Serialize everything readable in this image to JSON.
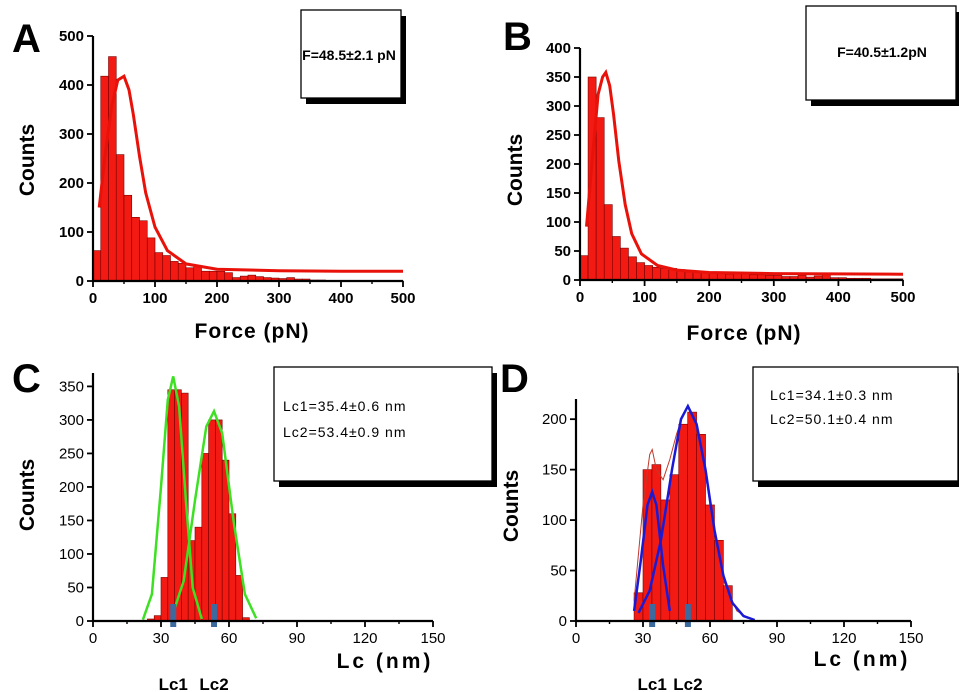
{
  "chart_data": [
    {
      "panel_letter": "A",
      "type": "bar",
      "fit_label": "F=48.5±2.1 pN",
      "xlabel": "Force (pN)",
      "ylabel": "Counts",
      "xlim": [
        0,
        500
      ],
      "ylim": [
        0,
        500
      ],
      "x_ticks": [
        0,
        100,
        200,
        300,
        400,
        500
      ],
      "y_ticks": [
        0,
        100,
        200,
        300,
        400,
        500
      ],
      "bin_width": 12.5,
      "values": [
        62,
        418,
        458,
        258,
        175,
        130,
        123,
        88,
        58,
        52,
        40,
        36,
        27,
        31,
        20,
        20,
        20,
        17,
        7,
        10,
        12,
        9,
        7,
        6,
        5,
        7,
        4,
        4,
        2,
        2,
        1,
        1,
        1,
        1,
        1,
        1,
        1,
        1,
        1,
        1
      ],
      "fit": {
        "x": [
          10,
          20,
          30,
          40,
          50,
          58,
          65,
          75,
          85,
          100,
          120,
          150,
          200,
          300,
          400,
          500
        ],
        "y": [
          150,
          262,
          355,
          410,
          418,
          390,
          340,
          255,
          180,
          110,
          62,
          35,
          24,
          21,
          20,
          20
        ]
      }
    },
    {
      "panel_letter": "B",
      "type": "bar",
      "fit_label": "F=40.5±1.2pN",
      "xlabel": "Force (pN)",
      "ylabel": "Counts",
      "xlim": [
        0,
        500
      ],
      "ylim": [
        0,
        400
      ],
      "x_ticks": [
        0,
        100,
        200,
        300,
        400,
        500
      ],
      "y_ticks": [
        0,
        50,
        100,
        150,
        200,
        250,
        300,
        350,
        400
      ],
      "bin_width": 12.5,
      "values": [
        42,
        350,
        280,
        130,
        75,
        55,
        40,
        30,
        25,
        22,
        20,
        20,
        18,
        14,
        14,
        13,
        12,
        12,
        10,
        12,
        10,
        9,
        9,
        8,
        8,
        6,
        6,
        8,
        5,
        7,
        10,
        4,
        4,
        3,
        3,
        3,
        2,
        2,
        2,
        2
      ],
      "fit": {
        "x": [
          10,
          20,
          28,
          35,
          40,
          46,
          52,
          60,
          70,
          80,
          95,
          120,
          150,
          200,
          300,
          500
        ],
        "y": [
          92,
          220,
          320,
          350,
          358,
          335,
          285,
          205,
          130,
          80,
          45,
          25,
          17,
          13,
          11,
          10
        ]
      }
    },
    {
      "panel_letter": "C",
      "type": "bar",
      "fit_label_1": "Lc1=35.4±0.6 nm",
      "fit_label_2": "Lc2=53.4±0.9 nm",
      "xlabel": "Lc (nm)",
      "ylabel": "Counts",
      "xlim": [
        0,
        150
      ],
      "ylim": [
        0,
        370
      ],
      "x_ticks": [
        0,
        30,
        60,
        90,
        120,
        150
      ],
      "y_ticks": [
        0,
        50,
        100,
        150,
        200,
        250,
        300,
        350
      ],
      "bin_width": 3,
      "bins_start": 24,
      "values": [
        3,
        8,
        65,
        345,
        345,
        340,
        120,
        140,
        250,
        300,
        300,
        240,
        160,
        68,
        5,
        0
      ],
      "fit_color": "#3de023",
      "fit_total": {
        "x": [
          20,
          25,
          30,
          33,
          35.4,
          38,
          41,
          44,
          47,
          50,
          53.4,
          56,
          60,
          65,
          70,
          75
        ],
        "y": [
          2,
          22,
          170,
          328,
          365,
          310,
          200,
          215,
          262,
          300,
          313,
          290,
          190,
          60,
          12,
          1
        ]
      },
      "fit_peak1": {
        "x": [
          22,
          26,
          30,
          33,
          35.4,
          38,
          41,
          44,
          48
        ],
        "y": [
          2,
          40,
          200,
          330,
          365,
          320,
          180,
          50,
          3
        ]
      },
      "fit_peak2": {
        "x": [
          35,
          40,
          45,
          50,
          53.4,
          57,
          62,
          67,
          72
        ],
        "y": [
          8,
          60,
          180,
          290,
          313,
          280,
          150,
          40,
          4
        ]
      },
      "markers": [
        {
          "label": "Lc1",
          "x": 35.4
        },
        {
          "label": "Lc2",
          "x": 53.4
        }
      ]
    },
    {
      "panel_letter": "D",
      "type": "bar",
      "fit_label_1": "Lc1=34.1±0.3 nm",
      "fit_label_2": "Lc2=50.1±0.4 nm",
      "xlabel": "Lc (nm)",
      "ylabel": "Counts",
      "xlim": [
        0,
        150
      ],
      "ylim": [
        0,
        220
      ],
      "x_ticks": [
        0,
        30,
        60,
        90,
        120,
        150
      ],
      "y_ticks": [
        0,
        50,
        100,
        150,
        200
      ],
      "bin_width": 4,
      "bins_start": 26,
      "values": [
        28,
        150,
        155,
        120,
        145,
        195,
        207,
        185,
        115,
        80,
        35
      ],
      "fit_color": "#1a1ad6",
      "fit_total": {
        "x": [
          26,
          30,
          33,
          34.1,
          36,
          39,
          42,
          45,
          48,
          50.1,
          53,
          57,
          61,
          66,
          72,
          78
        ],
        "y": [
          20,
          115,
          165,
          170,
          150,
          140,
          160,
          185,
          205,
          213,
          200,
          160,
          100,
          40,
          10,
          2
        ]
      },
      "fit_peak1": {
        "x": [
          26,
          29,
          32,
          34.1,
          36,
          39,
          42
        ],
        "y": [
          10,
          60,
          115,
          128,
          115,
          55,
          10
        ]
      },
      "fit_peak2": {
        "x": [
          28,
          33,
          38,
          43,
          47,
          50.1,
          54,
          58,
          62,
          66,
          70,
          75,
          80
        ],
        "y": [
          8,
          30,
          80,
          150,
          200,
          213,
          195,
          150,
          90,
          45,
          18,
          5,
          1
        ]
      },
      "markers": [
        {
          "label": "Lc1",
          "x": 34.1
        },
        {
          "label": "Lc2",
          "x": 50.1
        }
      ]
    }
  ]
}
